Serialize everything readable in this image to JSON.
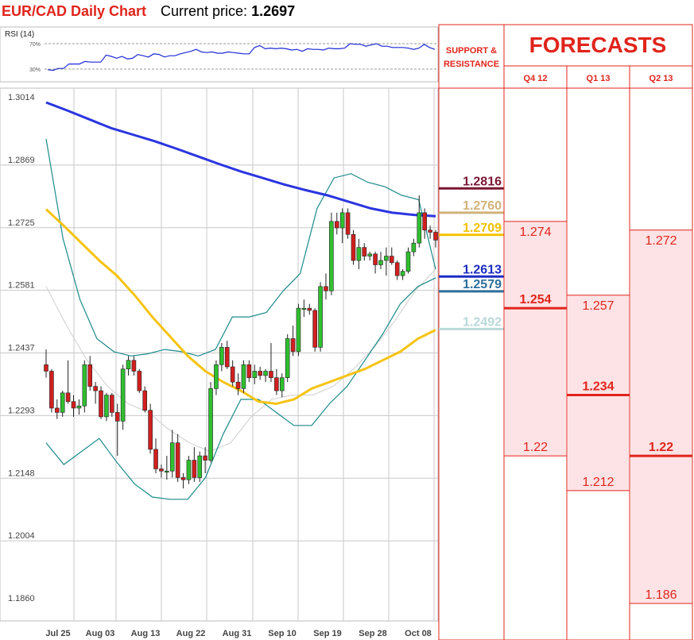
{
  "header": {
    "title": "EUR/CAD Daily Chart",
    "price_label": "Current price:",
    "price_value": "1.2697"
  },
  "colors": {
    "title_red": "#e0241b",
    "candle_up": "#2fbf2f",
    "candle_down": "#d11f1f",
    "ma200": "#2b35e0",
    "ma50": "#f6c312",
    "ma20": "#cfcfcf",
    "bollinger": "#1b8a8a",
    "rsi_line": "#1f2ad6",
    "forecast_fill": "#fde3e5",
    "forecast_line": "#e0241b",
    "grid": "#c8c8c8"
  },
  "rsi": {
    "label": "RSI (14)",
    "level_high": "70%",
    "level_low": "30%",
    "values": [
      29,
      28,
      31,
      31,
      38,
      38,
      38,
      42,
      41,
      41,
      41,
      52,
      50,
      47,
      50,
      46,
      47,
      53,
      51,
      49,
      54,
      53,
      49,
      51,
      51,
      54,
      56,
      58,
      61,
      57,
      56,
      57,
      55,
      55,
      57,
      56,
      55,
      54,
      54,
      64,
      67,
      62,
      63,
      62,
      63,
      62,
      60,
      61,
      58,
      62,
      61,
      61,
      60,
      63,
      62,
      62,
      63,
      70,
      69,
      69,
      66,
      68,
      70,
      66,
      66,
      64,
      64,
      64,
      63,
      61,
      63,
      69,
      64,
      61
    ]
  },
  "chart_data": {
    "type": "candlestick",
    "title": "EUR/CAD Daily Chart",
    "ylim": [
      1.186,
      1.3014
    ],
    "y_ticks": [
      "1.3014",
      "1.2869",
      "1.2725",
      "1.2581",
      "1.2437",
      "1.2293",
      "1.2148",
      "1.2004",
      "1.1860"
    ],
    "x_ticks": [
      "Jul 25",
      "Aug 03",
      "Aug 13",
      "Aug 22",
      "Aug 31",
      "Sep 10",
      "Sep 19",
      "Sep 28",
      "Oct 08"
    ],
    "grid": true,
    "candles": [
      {
        "o": 1.241,
        "h": 1.2445,
        "l": 1.238,
        "c": 1.2395
      },
      {
        "o": 1.2395,
        "h": 1.24,
        "l": 1.23,
        "c": 1.231
      },
      {
        "o": 1.231,
        "h": 1.233,
        "l": 1.2285,
        "c": 1.23
      },
      {
        "o": 1.23,
        "h": 1.235,
        "l": 1.229,
        "c": 1.2345
      },
      {
        "o": 1.2345,
        "h": 1.242,
        "l": 1.232,
        "c": 1.2325
      },
      {
        "o": 1.2325,
        "h": 1.234,
        "l": 1.229,
        "c": 1.231
      },
      {
        "o": 1.231,
        "h": 1.233,
        "l": 1.2295,
        "c": 1.2315
      },
      {
        "o": 1.2315,
        "h": 1.242,
        "l": 1.23,
        "c": 1.241
      },
      {
        "o": 1.241,
        "h": 1.243,
        "l": 1.235,
        "c": 1.236
      },
      {
        "o": 1.236,
        "h": 1.237,
        "l": 1.232,
        "c": 1.235
      },
      {
        "o": 1.235,
        "h": 1.236,
        "l": 1.2285,
        "c": 1.229
      },
      {
        "o": 1.229,
        "h": 1.2345,
        "l": 1.228,
        "c": 1.234
      },
      {
        "o": 1.234,
        "h": 1.2345,
        "l": 1.229,
        "c": 1.23
      },
      {
        "o": 1.23,
        "h": 1.232,
        "l": 1.22,
        "c": 1.228
      },
      {
        "o": 1.228,
        "h": 1.241,
        "l": 1.226,
        "c": 1.24
      },
      {
        "o": 1.24,
        "h": 1.243,
        "l": 1.2385,
        "c": 1.242
      },
      {
        "o": 1.242,
        "h": 1.243,
        "l": 1.2385,
        "c": 1.2395
      },
      {
        "o": 1.2395,
        "h": 1.24,
        "l": 1.2345,
        "c": 1.235
      },
      {
        "o": 1.235,
        "h": 1.236,
        "l": 1.23,
        "c": 1.2305
      },
      {
        "o": 1.2305,
        "h": 1.232,
        "l": 1.2205,
        "c": 1.2215
      },
      {
        "o": 1.2215,
        "h": 1.224,
        "l": 1.216,
        "c": 1.217
      },
      {
        "o": 1.217,
        "h": 1.218,
        "l": 1.215,
        "c": 1.2165
      },
      {
        "o": 1.2165,
        "h": 1.22,
        "l": 1.2145,
        "c": 1.2165
      },
      {
        "o": 1.2165,
        "h": 1.226,
        "l": 1.215,
        "c": 1.223
      },
      {
        "o": 1.223,
        "h": 1.225,
        "l": 1.214,
        "c": 1.215
      },
      {
        "o": 1.215,
        "h": 1.216,
        "l": 1.2125,
        "c": 1.2145
      },
      {
        "o": 1.2145,
        "h": 1.22,
        "l": 1.2135,
        "c": 1.219
      },
      {
        "o": 1.219,
        "h": 1.222,
        "l": 1.214,
        "c": 1.215
      },
      {
        "o": 1.215,
        "h": 1.221,
        "l": 1.214,
        "c": 1.22
      },
      {
        "o": 1.22,
        "h": 1.222,
        "l": 1.216,
        "c": 1.219
      },
      {
        "o": 1.219,
        "h": 1.237,
        "l": 1.2185,
        "c": 1.2355
      },
      {
        "o": 1.2355,
        "h": 1.242,
        "l": 1.234,
        "c": 1.241
      },
      {
        "o": 1.241,
        "h": 1.246,
        "l": 1.2395,
        "c": 1.245
      },
      {
        "o": 1.245,
        "h": 1.2465,
        "l": 1.24,
        "c": 1.2405
      },
      {
        "o": 1.2405,
        "h": 1.242,
        "l": 1.236,
        "c": 1.237
      },
      {
        "o": 1.237,
        "h": 1.239,
        "l": 1.234,
        "c": 1.2355
      },
      {
        "o": 1.2355,
        "h": 1.242,
        "l": 1.2345,
        "c": 1.241
      },
      {
        "o": 1.241,
        "h": 1.242,
        "l": 1.237,
        "c": 1.238
      },
      {
        "o": 1.238,
        "h": 1.241,
        "l": 1.2365,
        "c": 1.2395
      },
      {
        "o": 1.2395,
        "h": 1.2405,
        "l": 1.2375,
        "c": 1.2385
      },
      {
        "o": 1.2385,
        "h": 1.24,
        "l": 1.237,
        "c": 1.2395
      },
      {
        "o": 1.2395,
        "h": 1.246,
        "l": 1.237,
        "c": 1.238
      },
      {
        "o": 1.238,
        "h": 1.24,
        "l": 1.234,
        "c": 1.235
      },
      {
        "o": 1.235,
        "h": 1.239,
        "l": 1.2335,
        "c": 1.238
      },
      {
        "o": 1.238,
        "h": 1.248,
        "l": 1.237,
        "c": 1.247
      },
      {
        "o": 1.247,
        "h": 1.25,
        "l": 1.243,
        "c": 1.244
      },
      {
        "o": 1.244,
        "h": 1.255,
        "l": 1.243,
        "c": 1.254
      },
      {
        "o": 1.254,
        "h": 1.256,
        "l": 1.252,
        "c": 1.254
      },
      {
        "o": 1.254,
        "h": 1.255,
        "l": 1.2525,
        "c": 1.2535
      },
      {
        "o": 1.2535,
        "h": 1.254,
        "l": 1.244,
        "c": 1.245
      },
      {
        "o": 1.245,
        "h": 1.26,
        "l": 1.244,
        "c": 1.259
      },
      {
        "o": 1.259,
        "h": 1.262,
        "l": 1.256,
        "c": 1.258
      },
      {
        "o": 1.258,
        "h": 1.276,
        "l": 1.257,
        "c": 1.274
      },
      {
        "o": 1.274,
        "h": 1.276,
        "l": 1.271,
        "c": 1.2725
      },
      {
        "o": 1.2725,
        "h": 1.277,
        "l": 1.269,
        "c": 1.276
      },
      {
        "o": 1.276,
        "h": 1.277,
        "l": 1.27,
        "c": 1.271
      },
      {
        "o": 1.271,
        "h": 1.272,
        "l": 1.264,
        "c": 1.265
      },
      {
        "o": 1.265,
        "h": 1.27,
        "l": 1.263,
        "c": 1.268
      },
      {
        "o": 1.268,
        "h": 1.269,
        "l": 1.265,
        "c": 1.266
      },
      {
        "o": 1.266,
        "h": 1.267,
        "l": 1.265,
        "c": 1.2665
      },
      {
        "o": 1.2665,
        "h": 1.267,
        "l": 1.262,
        "c": 1.264
      },
      {
        "o": 1.264,
        "h": 1.267,
        "l": 1.263,
        "c": 1.265
      },
      {
        "o": 1.265,
        "h": 1.268,
        "l": 1.2615,
        "c": 1.266
      },
      {
        "o": 1.266,
        "h": 1.268,
        "l": 1.264,
        "c": 1.2645
      },
      {
        "o": 1.2645,
        "h": 1.265,
        "l": 1.2605,
        "c": 1.2615
      },
      {
        "o": 1.2615,
        "h": 1.263,
        "l": 1.2605,
        "c": 1.2625
      },
      {
        "o": 1.2625,
        "h": 1.268,
        "l": 1.262,
        "c": 1.267
      },
      {
        "o": 1.267,
        "h": 1.27,
        "l": 1.266,
        "c": 1.269
      },
      {
        "o": 1.269,
        "h": 1.28,
        "l": 1.268,
        "c": 1.276
      },
      {
        "o": 1.276,
        "h": 1.277,
        "l": 1.27,
        "c": 1.272
      },
      {
        "o": 1.272,
        "h": 1.273,
        "l": 1.27,
        "c": 1.2715
      },
      {
        "o": 1.2715,
        "h": 1.272,
        "l": 1.268,
        "c": 1.2697
      }
    ],
    "ma200": [
      1.3014,
      1.2995,
      1.2975,
      1.2955,
      1.294,
      1.2925,
      1.2908,
      1.289,
      1.2872,
      1.2855,
      1.284,
      1.2825,
      1.2812,
      1.28,
      1.2785,
      1.277,
      1.276,
      1.2755,
      1.2752
    ],
    "ma50": [
      1.2768,
      1.273,
      1.269,
      1.265,
      1.2615,
      1.257,
      1.252,
      1.2475,
      1.243,
      1.2395,
      1.237,
      1.235,
      1.2325,
      1.232,
      1.233,
      1.2355,
      1.237,
      1.2385,
      1.24,
      1.242,
      1.244,
      1.247,
      1.249
    ],
    "boll_upper": [
      1.293,
      1.27,
      1.256,
      1.247,
      1.244,
      1.243,
      1.2435,
      1.2445,
      1.244,
      1.243,
      1.2445,
      1.252,
      1.252,
      1.253,
      1.258,
      1.262,
      1.277,
      1.284,
      1.285,
      1.283,
      1.282,
      1.28,
      1.279,
      1.263
    ],
    "boll_lower": [
      1.223,
      1.218,
      1.221,
      1.224,
      1.2185,
      1.2135,
      1.2105,
      1.21,
      1.21,
      1.215,
      1.225,
      1.233,
      1.233,
      1.23,
      1.227,
      1.227,
      1.232,
      1.236,
      1.242,
      1.248,
      1.255,
      1.259,
      1.261
    ],
    "ma20": [
      1.259,
      1.25,
      1.242,
      1.236,
      1.232,
      1.23,
      1.226,
      1.223,
      1.221,
      1.223,
      1.229,
      1.233,
      1.234,
      1.234,
      1.236,
      1.24,
      1.245,
      1.251,
      1.258,
      1.263
    ],
    "support_resistance": {
      "header": [
        "SUPPORT &",
        "RESISTANCE"
      ],
      "levels": [
        {
          "label": "1.2816",
          "color": "#7a1632"
        },
        {
          "label": "1.2760",
          "color": "#d2b27a"
        },
        {
          "label": "1.2709",
          "color": "#f2c200"
        },
        {
          "label": "1.2613",
          "color": "#1b2cc4"
        },
        {
          "label": "1.2579",
          "color": "#2e6e9a"
        },
        {
          "label": "1.2492",
          "color": "#b9d9d9"
        }
      ]
    },
    "forecasts": {
      "title": "FORECASTS",
      "quarters": [
        {
          "name": "Q4 12",
          "high": "1.274",
          "mid": "1.254",
          "low": "1.22"
        },
        {
          "name": "Q1 13",
          "high": "1.257",
          "mid": "1.234",
          "low": "1.212"
        },
        {
          "name": "Q2 13",
          "high": "1.272",
          "mid": "1.22",
          "low": "1.186"
        }
      ]
    }
  }
}
